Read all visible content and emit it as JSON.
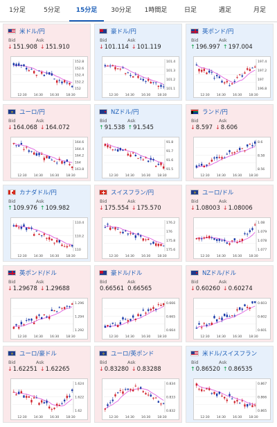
{
  "tabs": [
    "1分足",
    "5分足",
    "15分足",
    "30分足",
    "1時間足",
    "日足",
    "週足",
    "月足"
  ],
  "active_tab": 2,
  "labels": {
    "bid": "Bid",
    "ask": "Ask"
  },
  "x_ticks": [
    "12:30",
    "14:30",
    "16:30",
    "18:30"
  ],
  "colors": {
    "bull": "#d0222c",
    "bear": "#1a3aa8",
    "ma": "#e060e0",
    "link": "#1d5fb8",
    "up": "#0a9b43",
    "down": "#d0222c"
  },
  "pairs": [
    {
      "name": "米ドル/円",
      "flag": "us",
      "bg": "pink",
      "bid": "151.908",
      "ask": "151.910",
      "dir": "down",
      "trend": "down",
      "yticks": [
        "152.8",
        "152.6",
        "152.4",
        "152.2",
        "152"
      ]
    },
    {
      "name": "豪ドル/円",
      "flag": "au",
      "bg": "blue",
      "bid": "101.114",
      "ask": "101.119",
      "dir": "down",
      "trend": "down",
      "yticks": [
        "101.4",
        "101.3",
        "101.2",
        "101.1"
      ]
    },
    {
      "name": "英ポンド/円",
      "flag": "uk",
      "bg": "blue",
      "bid": "196.997",
      "ask": "197.004",
      "dir": "up",
      "trend": "vshape",
      "yticks": [
        "197.4",
        "197.2",
        "197",
        "196.8"
      ]
    },
    {
      "name": "ユーロ/円",
      "flag": "eu",
      "bg": "pink",
      "bid": "164.068",
      "ask": "164.072",
      "dir": "down",
      "trend": "down",
      "yticks": [
        "164.6",
        "164.4",
        "164.2",
        "164",
        "163.8"
      ]
    },
    {
      "name": "NZドル/円",
      "flag": "nz",
      "bg": "blue",
      "bid": "91.538",
      "ask": "91.545",
      "dir": "up",
      "trend": "down",
      "yticks": [
        "91.8",
        "91.7",
        "91.6",
        "91.5"
      ]
    },
    {
      "name": "ランド/円",
      "flag": "za",
      "bg": "pink",
      "bid": "8.597",
      "ask": "8.606",
      "dir": "down",
      "trend": "up",
      "yticks": [
        "8.6",
        "8.58",
        "8.56"
      ]
    },
    {
      "name": "カナダドル/円",
      "flag": "ca",
      "bg": "blue",
      "bid": "109.976",
      "ask": "109.982",
      "dir": "up",
      "trend": "down",
      "yticks": [
        "110.4",
        "110.2",
        "110"
      ]
    },
    {
      "name": "スイスフラン/円",
      "flag": "ch",
      "bg": "pink",
      "bid": "175.554",
      "ask": "175.570",
      "dir": "down",
      "trend": "down",
      "yticks": [
        "176.2",
        "176",
        "175.8",
        "175.6"
      ]
    },
    {
      "name": "ユーロ/ドル",
      "flag": "eu",
      "bg": "pink",
      "bid": "1.08003",
      "ask": "1.08006",
      "dir": "down",
      "trend": "flatup",
      "yticks": [
        "1.08",
        "1.079",
        "1.078",
        "1.077"
      ]
    },
    {
      "name": "英ポンド/ドル",
      "flag": "uk",
      "bg": "pink",
      "bid": "1.29678",
      "ask": "1.29688",
      "dir": "down",
      "trend": "up",
      "yticks": [
        "1.296",
        "1.294",
        "1.292"
      ]
    },
    {
      "name": "豪ドル/ドル",
      "flag": "au",
      "bg": "pink",
      "bid": "0.66561",
      "ask": "0.66565",
      "dir": "none",
      "trend": "up",
      "yticks": [
        "0.666",
        "0.665",
        "0.664"
      ]
    },
    {
      "name": "NZドル/ドル",
      "flag": "nz",
      "bg": "pink",
      "bid": "0.60260",
      "ask": "0.60274",
      "dir": "down",
      "trend": "up",
      "yticks": [
        "0.603",
        "0.602",
        "0.601"
      ]
    },
    {
      "name": "ユーロ/豪ドル",
      "flag": "eu",
      "bg": "pink",
      "bid": "1.62251",
      "ask": "1.62265",
      "dir": "down",
      "trend": "dip",
      "yticks": [
        "1.624",
        "1.622",
        "1.62"
      ]
    },
    {
      "name": "ユーロ/英ポンド",
      "flag": "eu",
      "bg": "pink",
      "bid": "0.83280",
      "ask": "0.83288",
      "dir": "down",
      "trend": "hump",
      "yticks": [
        "0.834",
        "0.833",
        "0.832"
      ]
    },
    {
      "name": "米ドル/スイスフラン",
      "flag": "us",
      "bg": "blue",
      "bid": "0.86520",
      "ask": "0.86535",
      "dir": "up",
      "trend": "down",
      "yticks": [
        "0.867",
        "0.866",
        "0.865"
      ]
    }
  ]
}
